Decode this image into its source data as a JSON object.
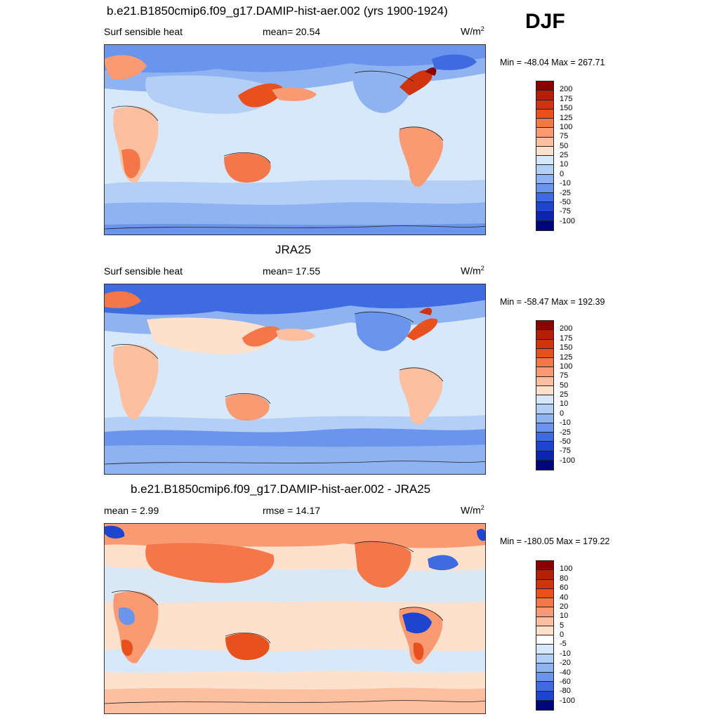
{
  "season": "DJF",
  "panels": [
    {
      "title": "b.e21.B1850cmip6.f09_g17.DAMIP-hist-aer.002 (yrs 1900-1924)",
      "left_label": "Surf sensible heat",
      "mid_label": "mean=  20.54",
      "units": "W/m",
      "units_sup": "2",
      "minmax": "Min = -48.04 Max = 267.71",
      "colorbar": {
        "labels": [
          "200",
          "175",
          "150",
          "125",
          "100",
          "75",
          "50",
          "25",
          "10",
          "0",
          "-10",
          "-25",
          "-50",
          "-75",
          "-100"
        ],
        "colors": [
          "#8b0000",
          "#b41e04",
          "#cf3310",
          "#e8501e",
          "#f4774a",
          "#fa9a73",
          "#fcbfa0",
          "#fde1cd",
          "#d6e8fa",
          "#b4cff5",
          "#8fb3f0",
          "#6b95ec",
          "#3e6be0",
          "#1d45d0",
          "#0a25b3",
          "#00067a"
        ]
      }
    },
    {
      "title": "JRA25",
      "left_label": "Surf sensible heat",
      "mid_label": "mean=  17.55",
      "units": "W/m",
      "units_sup": "2",
      "minmax": "Min = -58.47 Max = 192.39",
      "colorbar": {
        "labels": [
          "200",
          "175",
          "150",
          "125",
          "100",
          "75",
          "50",
          "25",
          "10",
          "0",
          "-10",
          "-25",
          "-50",
          "-75",
          "-100"
        ],
        "colors": [
          "#8b0000",
          "#b41e04",
          "#cf3310",
          "#e8501e",
          "#f4774a",
          "#fa9a73",
          "#fcbfa0",
          "#fde1cd",
          "#d6e8fa",
          "#b4cff5",
          "#8fb3f0",
          "#6b95ec",
          "#3e6be0",
          "#1d45d0",
          "#0a25b3",
          "#00067a"
        ]
      }
    },
    {
      "title": "b.e21.B1850cmip6.f09_g17.DAMIP-hist-aer.002 - JRA25",
      "left_label": "mean =   2.99",
      "mid_label": "rmse =  14.17",
      "units": "W/m",
      "units_sup": "2",
      "minmax": "Min = -180.05 Max = 179.22",
      "colorbar": {
        "labels": [
          "100",
          "80",
          "60",
          "40",
          "20",
          "10",
          "5",
          "0",
          "-5",
          "-10",
          "-20",
          "-40",
          "-60",
          "-80",
          "-100"
        ],
        "colors": [
          "#8b0000",
          "#b41e04",
          "#cf3310",
          "#e8501e",
          "#f4774a",
          "#fa9a73",
          "#fcbfa0",
          "#fde1cd",
          "#ffffff",
          "#d6e8fa",
          "#b4cff5",
          "#8fb3f0",
          "#6b95ec",
          "#3e6be0",
          "#1d45d0",
          "#00067a"
        ]
      }
    }
  ]
}
